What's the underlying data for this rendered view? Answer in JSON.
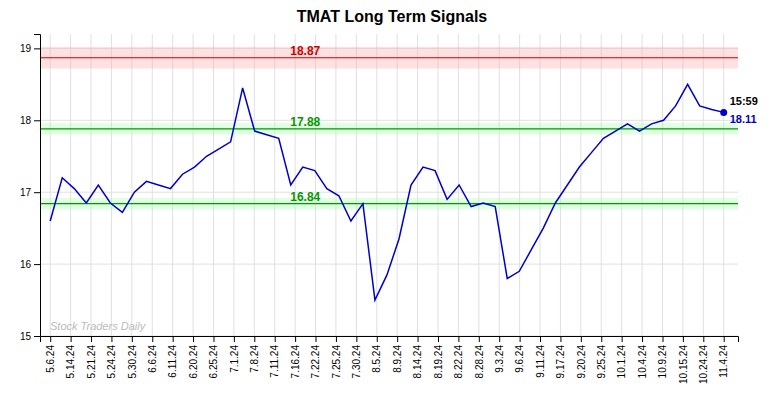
{
  "chart_data": {
    "type": "line",
    "title": "TMAT Long Term Signals",
    "xlim": [
      -0.5,
      33.7
    ],
    "xticks": [
      {
        "value": 0,
        "label": "5.6.24"
      },
      {
        "value": 1,
        "label": "5.14.24"
      },
      {
        "value": 2,
        "label": "5.21.24"
      },
      {
        "value": 3,
        "label": "5.24.24"
      },
      {
        "value": 4,
        "label": "5.30.24"
      },
      {
        "value": 5,
        "label": "6.6.24"
      },
      {
        "value": 6,
        "label": "6.11.24"
      },
      {
        "value": 7,
        "label": "6.20.24"
      },
      {
        "value": 8,
        "label": "6.25.24"
      },
      {
        "value": 9,
        "label": "7.1.24"
      },
      {
        "value": 10,
        "label": "7.8.24"
      },
      {
        "value": 11,
        "label": "7.11.24"
      },
      {
        "value": 12,
        "label": "7.16.24"
      },
      {
        "value": 13,
        "label": "7.22.24"
      },
      {
        "value": 14,
        "label": "7.25.24"
      },
      {
        "value": 15,
        "label": "7.30.24"
      },
      {
        "value": 16,
        "label": "8.5.24"
      },
      {
        "value": 17,
        "label": "8.9.24"
      },
      {
        "value": 18,
        "label": "8.14.24"
      },
      {
        "value": 19,
        "label": "8.19.24"
      },
      {
        "value": 20,
        "label": "8.22.24"
      },
      {
        "value": 21,
        "label": "8.28.24"
      },
      {
        "value": 22,
        "label": "9.3.24"
      },
      {
        "value": 23,
        "label": "9.6.24"
      },
      {
        "value": 24,
        "label": "9.11.24"
      },
      {
        "value": 25,
        "label": "9.17.24"
      },
      {
        "value": 26,
        "label": "9.20.24"
      },
      {
        "value": 27,
        "label": "9.25.24"
      },
      {
        "value": 28,
        "label": "10.1.24"
      },
      {
        "value": 29,
        "label": "10.4.24"
      },
      {
        "value": 30,
        "label": "10.9.24"
      },
      {
        "value": 31,
        "label": "10.15.24"
      },
      {
        "value": 32,
        "label": "10.24.24"
      },
      {
        "value": 33,
        "label": "11.4.24"
      }
    ],
    "ylim": [
      15.0,
      19.2
    ],
    "yticks": [
      15,
      16,
      17,
      18,
      19
    ],
    "values": [
      16.6,
      17.2,
      17.05,
      16.85,
      17.1,
      16.85,
      16.72,
      17.0,
      17.15,
      17.1,
      17.05,
      17.25,
      17.35,
      17.5,
      17.6,
      17.7,
      18.45,
      17.85,
      17.8,
      17.75,
      17.1,
      17.35,
      17.3,
      17.05,
      16.95,
      16.6,
      16.84,
      15.5,
      15.85,
      16.35,
      17.1,
      17.35,
      17.3,
      16.9,
      17.1,
      16.8,
      16.85,
      16.8,
      15.8,
      15.9,
      16.2,
      16.5,
      16.85,
      17.1,
      17.35,
      17.55,
      17.75,
      17.85,
      17.95,
      17.85,
      17.95,
      18.0,
      18.2,
      18.5,
      18.2,
      18.15,
      18.11
    ],
    "color": "#0000cc",
    "reference_lines": [
      {
        "value": 18.87,
        "label": "18.87",
        "color": "#cc0000",
        "band_color": "#ffaaaa",
        "band_width": 0.15
      },
      {
        "value": 17.88,
        "label": "17.88",
        "color": "#009900",
        "band_color": "#aaffaa",
        "band_width": 0.08
      },
      {
        "value": 16.84,
        "label": "16.84",
        "color": "#009900",
        "band_color": "#aaffaa",
        "band_width": 0.08
      }
    ],
    "annotations": [
      {
        "text": "15:59"
      },
      {
        "text": "18.11",
        "color": "#0000cc"
      }
    ],
    "watermark": "Stock Traders Daily",
    "grid": true
  }
}
